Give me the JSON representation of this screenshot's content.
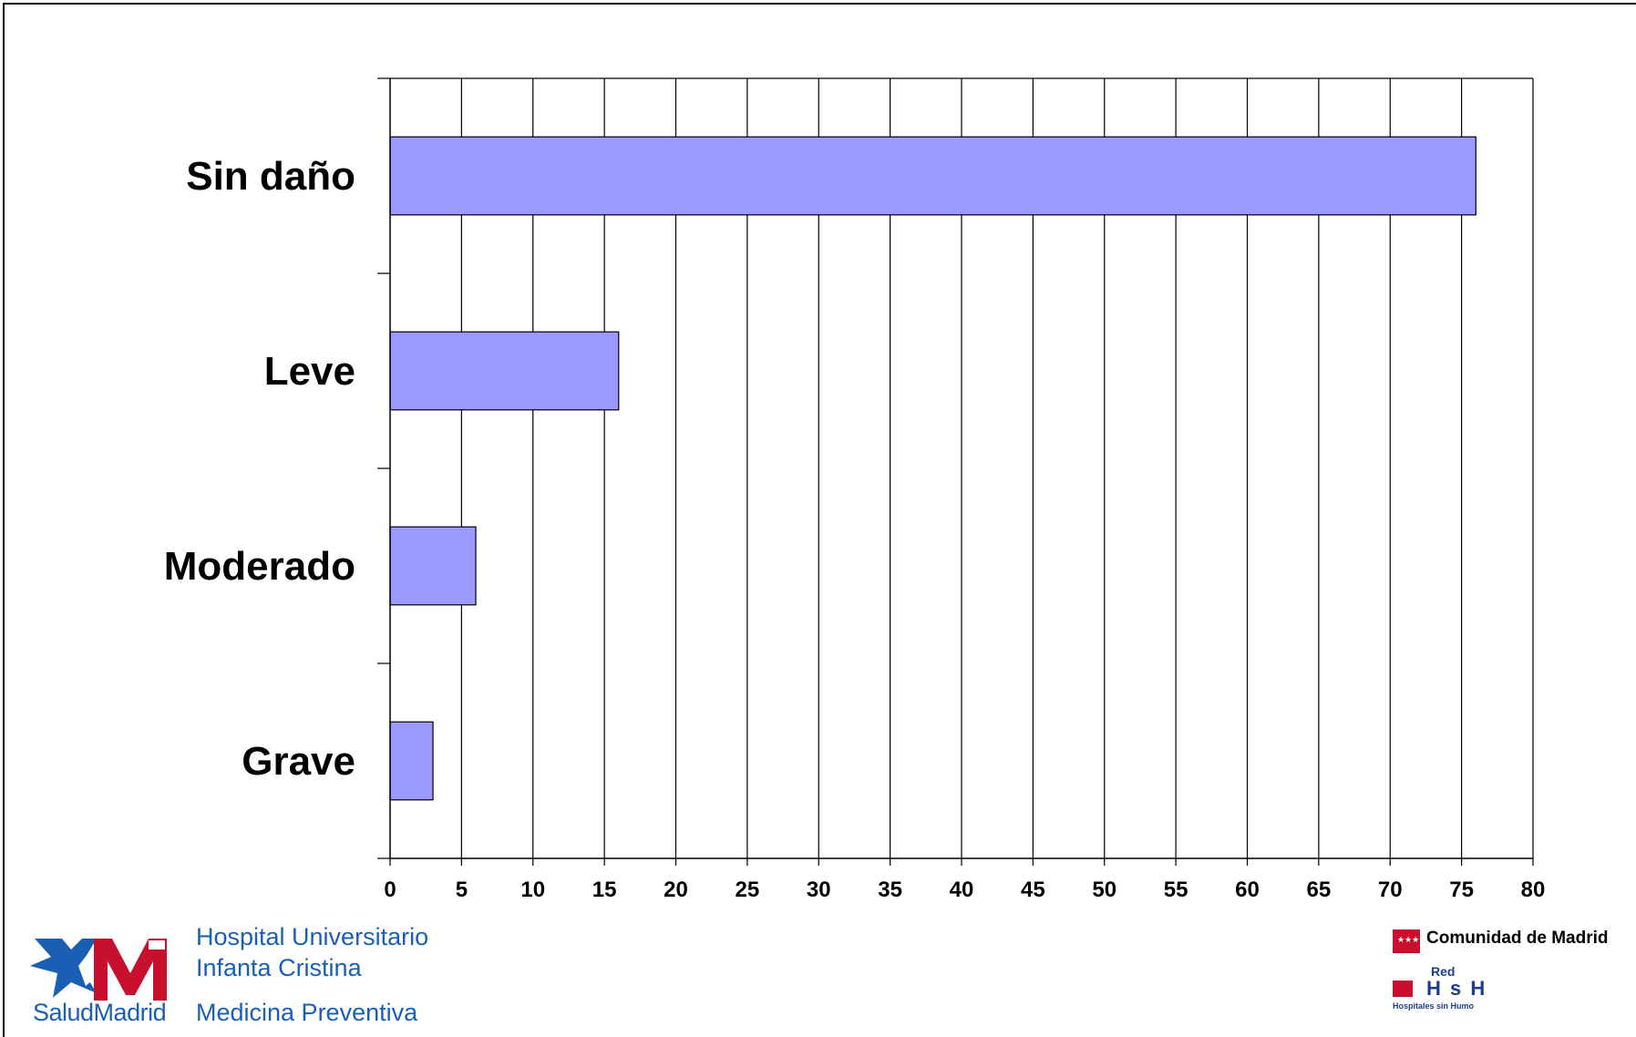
{
  "chart_data": {
    "type": "bar",
    "orientation": "horizontal",
    "categories": [
      "Sin daño",
      "Leve",
      "Moderado",
      "Grave"
    ],
    "values": [
      76,
      16,
      6,
      3
    ],
    "xlim": [
      0,
      80
    ],
    "xticks": [
      0,
      5,
      10,
      15,
      20,
      25,
      30,
      35,
      40,
      45,
      50,
      55,
      60,
      65,
      70,
      75,
      80
    ],
    "grid": "vertical",
    "bar_color": "#9999ff",
    "title": "",
    "xlabel": "",
    "ylabel": ""
  },
  "footer": {
    "hospital_line1": "Hospital Universitario",
    "hospital_line2": "Infanta Cristina",
    "department": "Medicina Preventiva",
    "salud_logo_text": "SaludMadrid",
    "comunidad": "Comunidad de Madrid",
    "red_label": "Red",
    "hsh_label": "H s H",
    "hsh_sub": "Hospitales sin Humo",
    "brand_blue": "#1a5fb4",
    "brand_red": "#c8102e"
  }
}
